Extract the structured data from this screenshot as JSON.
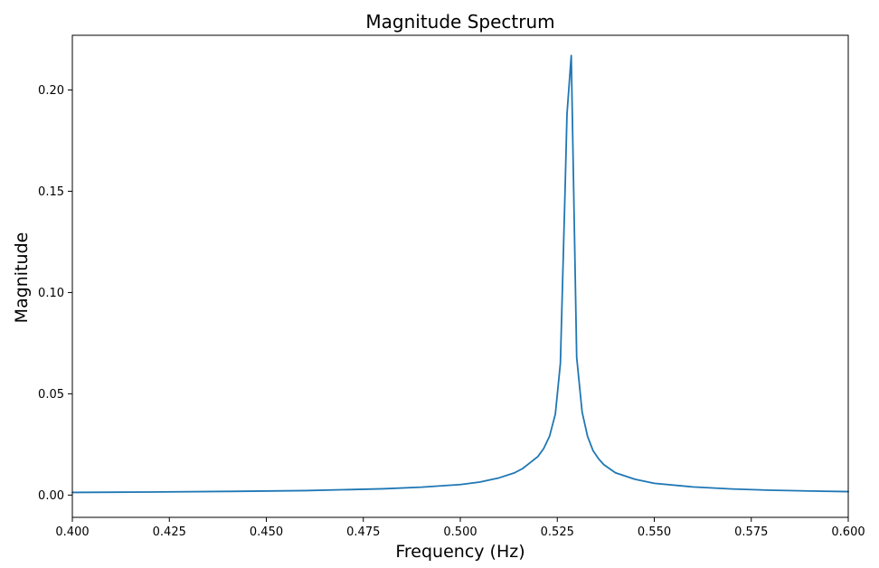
{
  "chart_data": {
    "type": "line",
    "title": "Magnitude Spectrum",
    "xlabel": "Frequency (Hz)",
    "ylabel": "Magnitude",
    "xlim": [
      0.4,
      0.6
    ],
    "ylim": [
      -0.011,
      0.227
    ],
    "grid": false,
    "x_ticks": [
      0.4,
      0.425,
      0.45,
      0.475,
      0.5,
      0.525,
      0.55,
      0.575,
      0.6
    ],
    "x_tick_labels": [
      "0.400",
      "0.425",
      "0.450",
      "0.475",
      "0.500",
      "0.525",
      "0.550",
      "0.575",
      "0.600"
    ],
    "y_ticks": [
      0.0,
      0.05,
      0.1,
      0.15,
      0.2
    ],
    "y_tick_labels": [
      "0.00",
      "0.05",
      "0.10",
      "0.15",
      "0.20"
    ],
    "series": [
      {
        "color": "#1f77b4",
        "x": [
          0.4,
          0.42,
          0.44,
          0.46,
          0.48,
          0.49,
          0.5,
          0.505,
          0.51,
          0.514,
          0.516,
          0.518,
          0.52,
          0.5215,
          0.523,
          0.5245,
          0.5258,
          0.527,
          0.5275,
          0.5286,
          0.53,
          0.5314,
          0.5328,
          0.5342,
          0.5356,
          0.537,
          0.54,
          0.545,
          0.55,
          0.56,
          0.57,
          0.58,
          0.59,
          0.6
        ],
        "y": [
          0.0013,
          0.0015,
          0.0018,
          0.0022,
          0.0031,
          0.0039,
          0.0052,
          0.0064,
          0.0085,
          0.011,
          0.013,
          0.016,
          0.019,
          0.023,
          0.029,
          0.04,
          0.065,
          0.15,
          0.188,
          0.217,
          0.068,
          0.041,
          0.029,
          0.022,
          0.018,
          0.015,
          0.011,
          0.0078,
          0.0058,
          0.004,
          0.003,
          0.0024,
          0.002,
          0.0017
        ]
      }
    ]
  }
}
